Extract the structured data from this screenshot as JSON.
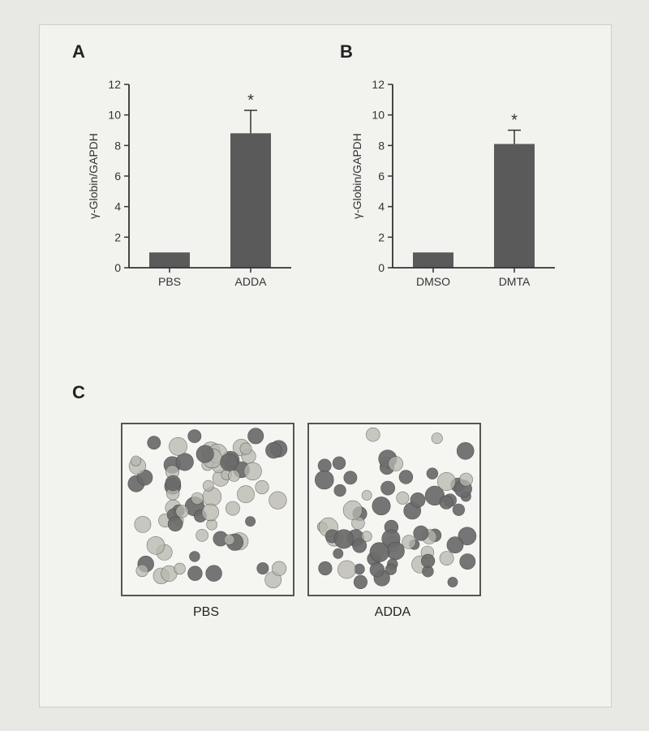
{
  "background_color": "#e8e8e5",
  "figure_bg": "#f2f2ef",
  "panelA": {
    "label": "A",
    "chart": {
      "type": "bar",
      "categories": [
        "PBS",
        "ADDA"
      ],
      "values": [
        1.0,
        8.8
      ],
      "errors": [
        0,
        1.5
      ],
      "sig_marks": [
        "",
        "*"
      ],
      "bar_color": "#5a5a5a",
      "bar_width": 0.5,
      "ylim": [
        0,
        12
      ],
      "ytick_step": 2,
      "ylabel": "γ-Globin/GAPDH",
      "tick_fontsize": 14,
      "label_fontsize": 14,
      "axis_color": "#333333",
      "tick_color": "#333333",
      "grid": false,
      "plot_bg": "#f2f2ef"
    }
  },
  "panelB": {
    "label": "B",
    "chart": {
      "type": "bar",
      "categories": [
        "DMSO",
        "DMTA"
      ],
      "values": [
        1.0,
        8.1
      ],
      "errors": [
        0,
        0.9
      ],
      "sig_marks": [
        "",
        "*"
      ],
      "bar_color": "#5a5a5a",
      "bar_width": 0.5,
      "ylim": [
        0,
        12
      ],
      "ytick_step": 2,
      "ylabel": "γ-Globin/GAPDH",
      "tick_fontsize": 14,
      "label_fontsize": 14,
      "axis_color": "#333333",
      "tick_color": "#333333",
      "grid": false,
      "plot_bg": "#f2f2ef"
    }
  },
  "panelC": {
    "label": "C",
    "micrographs": [
      {
        "caption": "PBS"
      },
      {
        "caption": "ADDA"
      }
    ],
    "cell_fill": "#6b6b6b",
    "cell_light": "#b8b8b0",
    "cell_stroke": "#4a4a4a",
    "frame_color": "#555555",
    "frame_bg": "#f5f5f2",
    "caption_fontsize": 16,
    "image_size": 210
  }
}
